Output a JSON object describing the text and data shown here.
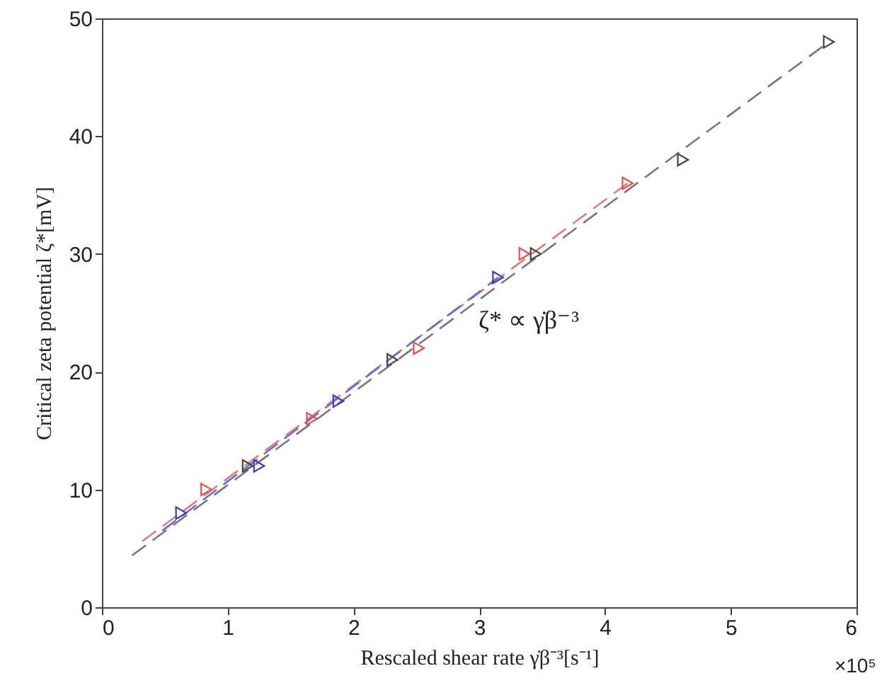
{
  "chart_data": {
    "type": "scatter",
    "xlabel": "Rescaled shear rate γ̇β⁻³[s⁻¹]",
    "ylabel": "Critical zeta potential ζ*[mV]",
    "xlim": [
      0,
      6
    ],
    "ylim": [
      0,
      50
    ],
    "xticks": [
      0,
      1,
      2,
      3,
      4,
      5,
      6
    ],
    "yticks": [
      0,
      10,
      20,
      30,
      40,
      50
    ],
    "grid": false,
    "annotations": [
      "ζ* ∝ γ̇β⁻³",
      "×10⁵"
    ],
    "series": [
      {
        "type": "line",
        "line_style": "dashed",
        "color": "#e07b7b",
        "x": [
          0.32,
          4.18
        ],
        "values": [
          5.6,
          36
        ]
      },
      {
        "type": "line",
        "line_style": "dashed",
        "color": "#6a6ad0",
        "x": [
          0.48,
          3.15
        ],
        "values": [
          6.5,
          28
        ]
      },
      {
        "type": "line",
        "line_style": "dashed",
        "color": "#777777",
        "x": [
          0.24,
          5.78
        ],
        "values": [
          4.4,
          48
        ]
      },
      {
        "marker": "triangle",
        "color": "#e05050",
        "x": [
          0.83,
          1.67,
          2.52,
          3.36,
          4.18
        ],
        "values": [
          10,
          16,
          22,
          30,
          36
        ]
      },
      {
        "marker": "triangle",
        "color": "#3b3bc8",
        "x": [
          0.63,
          1.25,
          1.88,
          3.15
        ],
        "values": [
          8,
          12,
          17.5,
          28
        ]
      },
      {
        "marker": "triangle",
        "color": "#444444",
        "x": [
          1.16,
          2.31,
          3.45,
          4.62,
          5.78
        ],
        "values": [
          12,
          21,
          30,
          38,
          48
        ]
      }
    ]
  }
}
